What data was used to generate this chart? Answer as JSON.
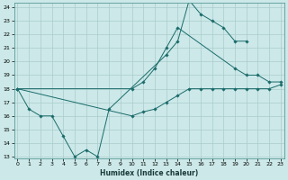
{
  "xlabel": "Humidex (Indice chaleur)",
  "bg_color": "#cce8e8",
  "grid_color": "#aacccc",
  "line_color": "#1a6b6b",
  "xmin": 0,
  "xmax": 23,
  "ymin": 13,
  "ymax": 24,
  "line1_x": [
    0,
    1,
    2,
    3,
    4,
    5,
    6,
    7,
    8,
    13,
    14,
    15,
    16,
    17,
    18,
    19,
    20
  ],
  "line1_y": [
    18.0,
    16.5,
    16.0,
    16.0,
    14.5,
    13.0,
    13.5,
    13.0,
    16.5,
    20.5,
    21.5,
    24.5,
    23.5,
    23.0,
    22.5,
    21.5,
    21.5
  ],
  "line2_x": [
    0,
    10,
    11,
    12,
    13,
    14,
    19,
    20,
    21,
    22,
    23
  ],
  "line2_y": [
    18.0,
    18.0,
    18.5,
    19.5,
    21.0,
    22.5,
    19.5,
    19.0,
    19.0,
    18.5,
    18.5
  ],
  "line3_x": [
    0,
    10,
    11,
    12,
    13,
    14,
    15,
    16,
    17,
    18,
    19,
    20,
    21,
    22,
    23
  ],
  "line3_y": [
    18.0,
    16.0,
    16.3,
    16.5,
    17.0,
    17.5,
    18.0,
    18.0,
    18.0,
    18.0,
    18.0,
    18.0,
    18.0,
    18.0,
    18.3
  ]
}
